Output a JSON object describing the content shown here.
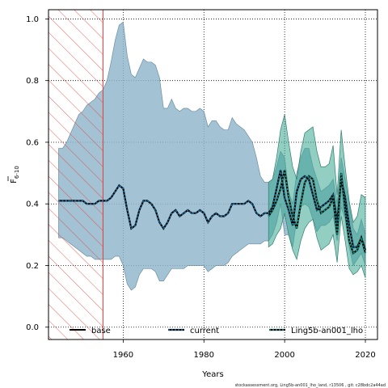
{
  "chart_data": {
    "type": "line",
    "xlabel": "Years",
    "ylabel": "F",
    "ylabel_sub": "6-10",
    "xlim": [
      1941.5,
      2023
    ],
    "ylim": [
      -0.04,
      1.03
    ],
    "x_ticks": [
      "1960",
      "1980",
      "2000",
      "2020"
    ],
    "y_ticks": [
      "0.0",
      "0.2",
      "0.4",
      "0.6",
      "0.8",
      "1.0"
    ],
    "grid": true,
    "hatched_region": {
      "from": 1941.5,
      "to": 1955
    },
    "footer_text": "stockassessment.org, Ling5b-an001_lho_land, r13506 , git: c28bdc2a44ad",
    "legend": [
      {
        "label": "base",
        "style": "solid",
        "color": "#000000"
      },
      {
        "label": "current",
        "style": "dotted",
        "color": "#1a6fa3"
      },
      {
        "label": "Ling5b-an001_lho",
        "style": "dotted",
        "color": "#1a9988"
      }
    ],
    "series": [
      {
        "name": "current",
        "color": "#1a6fa3",
        "band_color": "#8fb6cc",
        "x": [
          1944,
          1945,
          1946,
          1947,
          1948,
          1949,
          1950,
          1951,
          1952,
          1953,
          1954,
          1955,
          1956,
          1957,
          1958,
          1959,
          1960,
          1961,
          1962,
          1963,
          1964,
          1965,
          1966,
          1967,
          1968,
          1969,
          1970,
          1971,
          1972,
          1973,
          1974,
          1975,
          1976,
          1977,
          1978,
          1979,
          1980,
          1981,
          1982,
          1983,
          1984,
          1985,
          1986,
          1987,
          1988,
          1989,
          1990,
          1991,
          1992,
          1993,
          1994,
          1995,
          1996,
          1997,
          1998,
          1999,
          2000,
          2001,
          2002,
          2003,
          2004,
          2005,
          2006,
          2007,
          2008,
          2009,
          2010,
          2011,
          2012,
          2013,
          2014,
          2015,
          2016,
          2017,
          2018,
          2019,
          2020
        ],
        "y": [
          0.41,
          0.41,
          0.41,
          0.41,
          0.41,
          0.41,
          0.41,
          0.4,
          0.4,
          0.4,
          0.41,
          0.41,
          0.41,
          0.42,
          0.44,
          0.46,
          0.45,
          0.38,
          0.32,
          0.33,
          0.38,
          0.41,
          0.41,
          0.4,
          0.38,
          0.34,
          0.32,
          0.34,
          0.37,
          0.38,
          0.36,
          0.37,
          0.38,
          0.37,
          0.37,
          0.38,
          0.37,
          0.34,
          0.36,
          0.37,
          0.36,
          0.36,
          0.37,
          0.4,
          0.4,
          0.4,
          0.4,
          0.41,
          0.4,
          0.37,
          0.36,
          0.37,
          0.37,
          0.39,
          0.45,
          0.51,
          0.42,
          0.38,
          0.33,
          0.44,
          0.48,
          0.49,
          0.48,
          0.43,
          0.38,
          0.39,
          0.4,
          0.41,
          0.43,
          0.34,
          0.48,
          0.42,
          0.33,
          0.26,
          0.26,
          0.29,
          0.25
        ],
        "upper": [
          0.58,
          0.58,
          0.6,
          0.63,
          0.66,
          0.69,
          0.7,
          0.72,
          0.73,
          0.74,
          0.76,
          0.77,
          0.8,
          0.86,
          0.93,
          0.98,
          0.99,
          0.88,
          0.82,
          0.81,
          0.84,
          0.87,
          0.86,
          0.86,
          0.85,
          0.81,
          0.71,
          0.71,
          0.74,
          0.71,
          0.7,
          0.71,
          0.71,
          0.7,
          0.7,
          0.71,
          0.7,
          0.65,
          0.67,
          0.67,
          0.65,
          0.64,
          0.64,
          0.68,
          0.66,
          0.65,
          0.64,
          0.62,
          0.6,
          0.55,
          0.49,
          0.47,
          0.47,
          0.48,
          0.52,
          0.57,
          0.55,
          0.44,
          0.4,
          0.5,
          0.55,
          0.58,
          0.58,
          0.52,
          0.48,
          0.44,
          0.45,
          0.46,
          0.48,
          0.4,
          0.55,
          0.48,
          0.4,
          0.32,
          0.3,
          0.35,
          0.3
        ],
        "lower": [
          0.29,
          0.29,
          0.28,
          0.27,
          0.26,
          0.25,
          0.24,
          0.23,
          0.23,
          0.22,
          0.22,
          0.22,
          0.22,
          0.22,
          0.23,
          0.23,
          0.2,
          0.14,
          0.12,
          0.13,
          0.17,
          0.19,
          0.19,
          0.19,
          0.18,
          0.15,
          0.15,
          0.17,
          0.19,
          0.19,
          0.19,
          0.19,
          0.2,
          0.2,
          0.2,
          0.2,
          0.2,
          0.18,
          0.19,
          0.2,
          0.2,
          0.2,
          0.21,
          0.23,
          0.24,
          0.25,
          0.26,
          0.27,
          0.27,
          0.27,
          0.27,
          0.28,
          0.28,
          0.3,
          0.34,
          0.4,
          0.3,
          0.3,
          0.26,
          0.35,
          0.39,
          0.4,
          0.39,
          0.35,
          0.31,
          0.33,
          0.33,
          0.34,
          0.36,
          0.28,
          0.39,
          0.35,
          0.26,
          0.2,
          0.22,
          0.24,
          0.2
        ]
      },
      {
        "name": "Ling5b-an001_lho",
        "color": "#1a9988",
        "band_color": "#3aa58f",
        "x": [
          1996,
          1997,
          1998,
          1999,
          2000,
          2001,
          2002,
          2003,
          2004,
          2005,
          2006,
          2007,
          2008,
          2009,
          2010,
          2011,
          2012,
          2013,
          2014,
          2015,
          2016,
          2017,
          2018,
          2019,
          2020
        ],
        "y": [
          0.36,
          0.38,
          0.41,
          0.45,
          0.51,
          0.42,
          0.36,
          0.32,
          0.4,
          0.47,
          0.49,
          0.48,
          0.41,
          0.37,
          0.38,
          0.39,
          0.42,
          0.3,
          0.5,
          0.38,
          0.28,
          0.24,
          0.25,
          0.29,
          0.24
        ],
        "upper": [
          0.47,
          0.48,
          0.55,
          0.64,
          0.69,
          0.6,
          0.52,
          0.48,
          0.57,
          0.63,
          0.64,
          0.65,
          0.57,
          0.52,
          0.52,
          0.53,
          0.59,
          0.43,
          0.64,
          0.52,
          0.41,
          0.34,
          0.36,
          0.43,
          0.42
        ],
        "lower": [
          0.26,
          0.27,
          0.3,
          0.32,
          0.37,
          0.3,
          0.25,
          0.22,
          0.28,
          0.32,
          0.34,
          0.35,
          0.29,
          0.25,
          0.26,
          0.27,
          0.3,
          0.21,
          0.36,
          0.28,
          0.19,
          0.17,
          0.18,
          0.2,
          0.16
        ]
      }
    ]
  }
}
